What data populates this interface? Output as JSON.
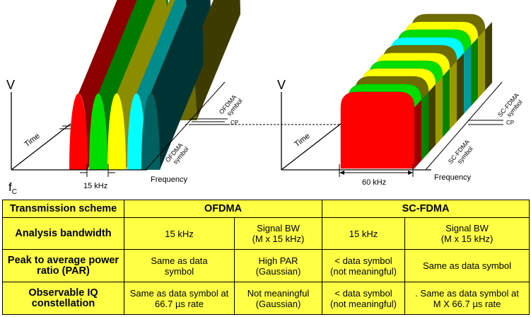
{
  "left_diagram": {
    "axis_v": "V",
    "axis_time": "Time",
    "axis_frequency": "Frequency",
    "subcarrier_width": "15 kHz",
    "symbol_label_upper": [
      "OFDMA",
      "symbol"
    ],
    "symbol_label_lower": [
      "OFDMA",
      "symbol"
    ],
    "cp_label": "CP",
    "fc_label": "f",
    "fc_sub": "C"
  },
  "right_diagram": {
    "axis_v": "V",
    "axis_time": "Time",
    "axis_frequency": "Frequency",
    "bandwidth": "60 kHz",
    "symbol_label_upper": [
      "SC-FDMA",
      "symbol"
    ],
    "symbol_label_lower": [
      "SC-FDMA",
      "symbol"
    ],
    "cp_label": "CP"
  },
  "colors": {
    "red": "#ff0000",
    "green": "#00dd00",
    "yellow": "#ffff00",
    "cyan": "#00ffff",
    "teal": "#005f5f",
    "olive": "#6e6b00",
    "table_bg": "#ffff44"
  },
  "table": {
    "headers": [
      "Transmission scheme",
      "OFDMA",
      "SC-FDMA"
    ],
    "rows": [
      {
        "label": "Analysis bandwidth",
        "cells": [
          "15 kHz",
          "Signal BW\n(M x 15 kHz)",
          "15 kHz",
          "Signal BW\n(M x 15 kHz)"
        ]
      },
      {
        "label": "Peak to average power ratio (PAR)",
        "cells": [
          "Same as data\nsymbol",
          "High PAR\n(Gaussian)",
          "< data symbol\n(not meaningful)",
          "Same as data symbol"
        ]
      },
      {
        "label": "Observable IQ constellation",
        "cells": [
          "Same as data symbol at\n66.7 µs rate",
          "Not meaningful\n(Gaussian)",
          "< data symbol\n(not meaningful)",
          ". Same as data symbol at\nM X 66.7 µs rate"
        ]
      }
    ]
  }
}
